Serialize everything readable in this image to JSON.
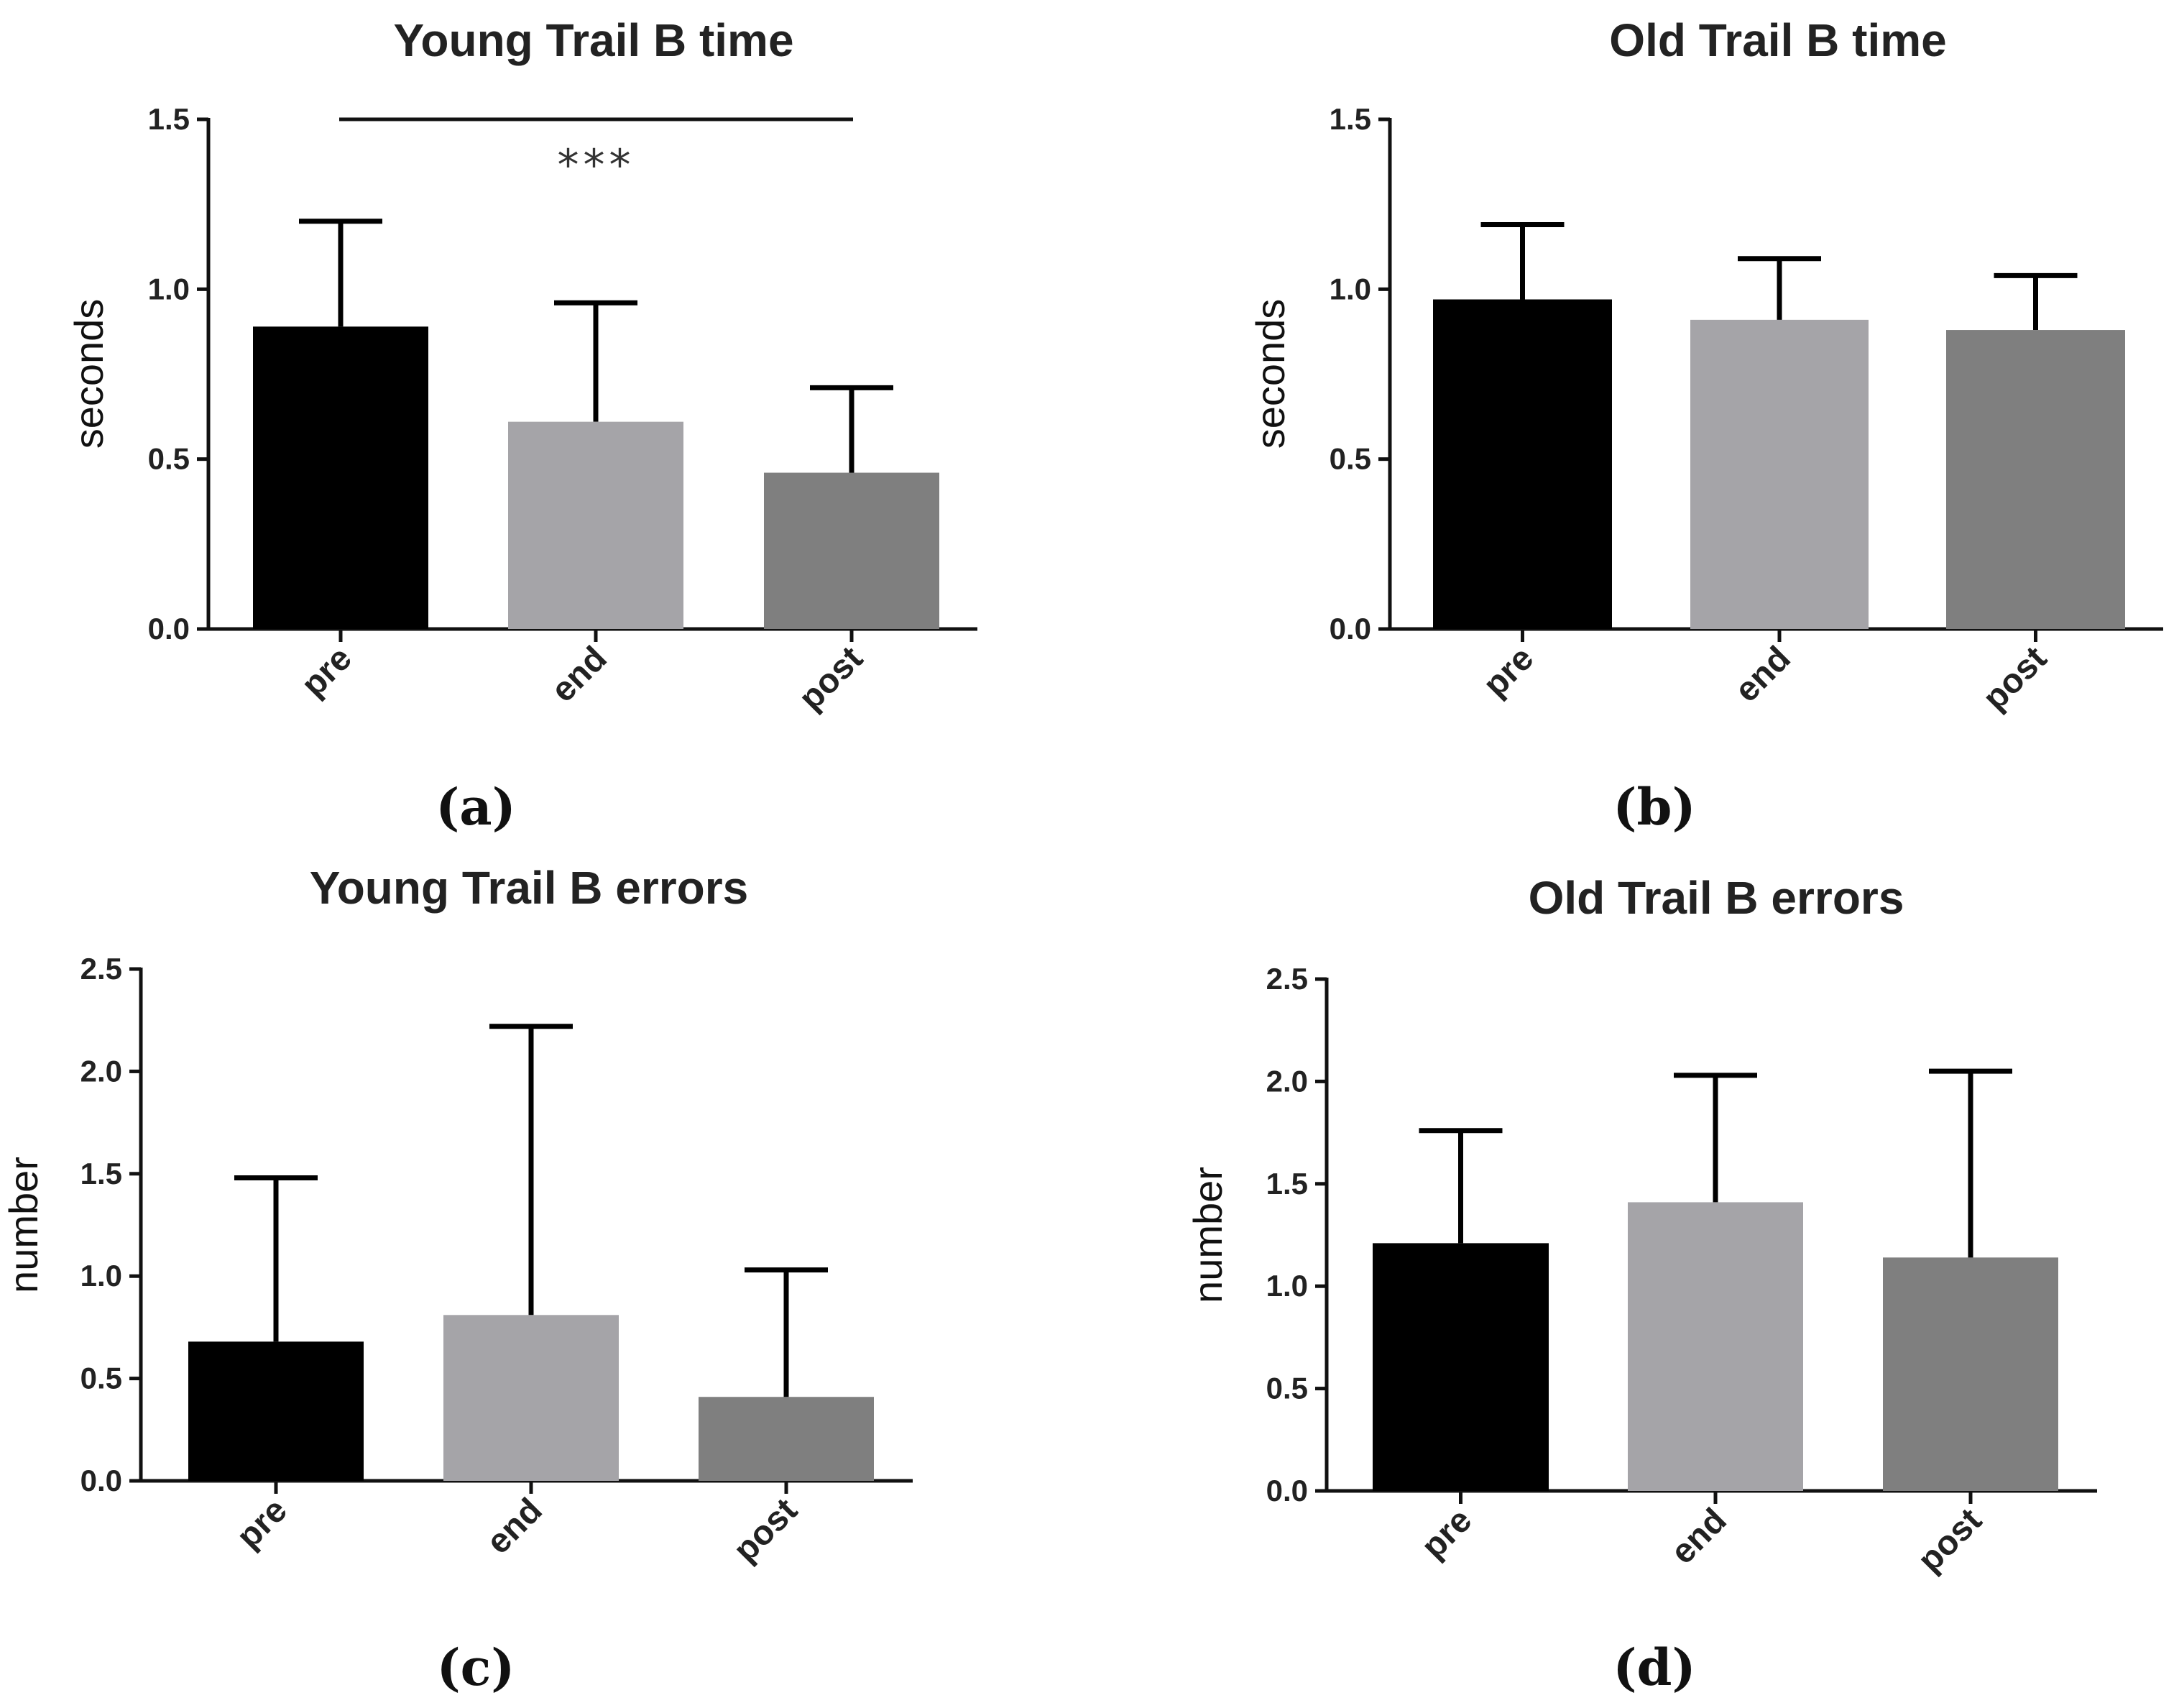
{
  "colors": {
    "pre": "#000000",
    "end": "#a5a4a8",
    "post": "#7f7f7f",
    "axis": "#111111"
  },
  "chart_data": [
    {
      "type": "bar",
      "title": "Young Trail B time",
      "panel_label": "(a)",
      "ylabel": "seconds",
      "xlabel": "",
      "categories": [
        "pre",
        "end",
        "post"
      ],
      "values": [
        0.89,
        0.61,
        0.46
      ],
      "error_upper": [
        1.2,
        0.96,
        0.71
      ],
      "ylim": [
        0,
        1.5
      ],
      "yticks": [
        "0.0",
        "0.5",
        "1.0",
        "1.5"
      ],
      "significance": {
        "from": "pre",
        "to": "post",
        "label": "***"
      }
    },
    {
      "type": "bar",
      "title": "Old Trail B time",
      "panel_label": "(b)",
      "ylabel": "seconds",
      "xlabel": "",
      "categories": [
        "pre",
        "end",
        "post"
      ],
      "values": [
        0.97,
        0.91,
        0.88
      ],
      "error_upper": [
        1.19,
        1.09,
        1.04
      ],
      "ylim": [
        0,
        1.5
      ],
      "yticks": [
        "0.0",
        "0.5",
        "1.0",
        "1.5"
      ]
    },
    {
      "type": "bar",
      "title": "Young Trail B errors",
      "panel_label": "(c)",
      "ylabel": "number",
      "xlabel": "",
      "categories": [
        "pre",
        "end",
        "post"
      ],
      "values": [
        0.68,
        0.81,
        0.41
      ],
      "error_upper": [
        1.48,
        2.22,
        1.03
      ],
      "ylim": [
        0,
        2.5
      ],
      "yticks": [
        "0.0",
        "0.5",
        "1.0",
        "1.5",
        "2.0",
        "2.5"
      ]
    },
    {
      "type": "bar",
      "title": "Old Trail B errors",
      "panel_label": "(d)",
      "ylabel": "number",
      "xlabel": "",
      "categories": [
        "pre",
        "end",
        "post"
      ],
      "values": [
        1.21,
        1.41,
        1.14
      ],
      "error_upper": [
        1.76,
        2.03,
        2.05
      ],
      "ylim": [
        0,
        2.5
      ],
      "yticks": [
        "0.0",
        "0.5",
        "1.0",
        "1.5",
        "2.0",
        "2.5"
      ]
    }
  ]
}
